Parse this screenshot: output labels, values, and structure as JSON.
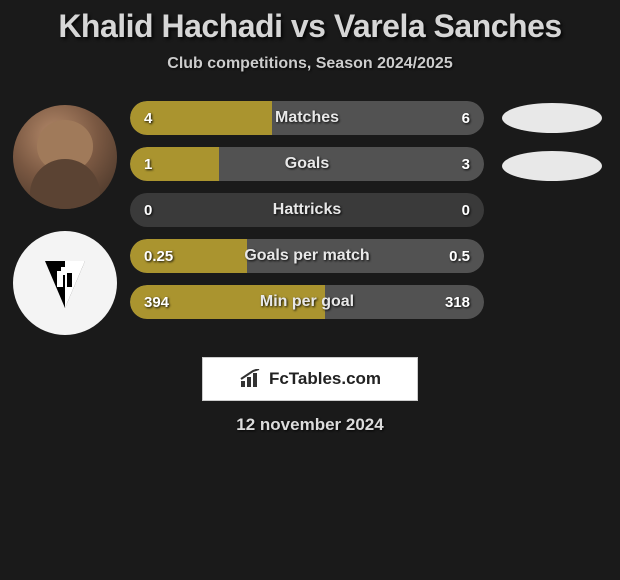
{
  "title": {
    "player1": "Khalid Hachadi",
    "vs": "vs",
    "player2": "Varela Sanches"
  },
  "subtitle": "Club competitions, Season 2024/2025",
  "stats": [
    {
      "label": "Matches",
      "left_val": "4",
      "right_val": "6",
      "left_pct": 40,
      "right_pct": 60
    },
    {
      "label": "Goals",
      "left_val": "1",
      "right_val": "3",
      "left_pct": 25,
      "right_pct": 75
    },
    {
      "label": "Hattricks",
      "left_val": "0",
      "right_val": "0",
      "left_pct": 0,
      "right_pct": 0
    },
    {
      "label": "Goals per match",
      "left_val": "0.25",
      "right_val": "0.5",
      "left_pct": 33,
      "right_pct": 67
    },
    {
      "label": "Min per goal",
      "left_val": "394",
      "right_val": "318",
      "left_pct": 55,
      "right_pct": 45
    }
  ],
  "ovals": [
    {
      "id": "oval-player1",
      "color": "#e8e8e8"
    },
    {
      "id": "oval-player2",
      "color": "#e8e8e8"
    }
  ],
  "brand": "FcTables.com",
  "date": "12 november 2024",
  "colors": {
    "bar_left": "#aa942f",
    "bar_right": "#525252",
    "bar_bg": "#3a3a3a",
    "page_bg": "#1a1a1a"
  }
}
